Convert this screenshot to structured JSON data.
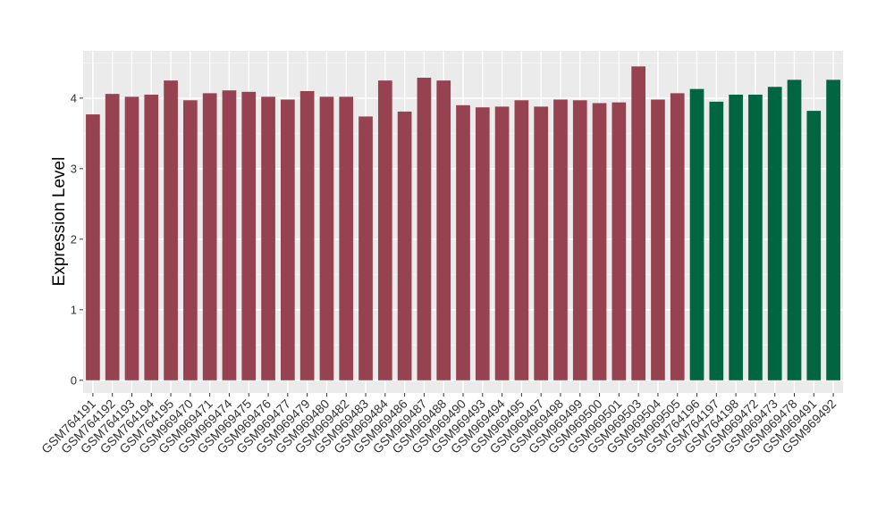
{
  "chart_data": {
    "type": "bar",
    "title": "",
    "xlabel": "",
    "ylabel": "Expression Level",
    "ylim": [
      -0.18,
      4.67
    ],
    "yticks": [
      0,
      1,
      2,
      3,
      4
    ],
    "grid": true,
    "panel_background": "#ebebeb",
    "series_colors": [
      "#974250",
      "#006641"
    ],
    "categories": [
      "GSM764191",
      "GSM764192",
      "GSM764193",
      "GSM764194",
      "GSM764195",
      "GSM969470",
      "GSM969471",
      "GSM969474",
      "GSM969475",
      "GSM969476",
      "GSM969477",
      "GSM969479",
      "GSM969480",
      "GSM969482",
      "GSM969483",
      "GSM969484",
      "GSM969486",
      "GSM969487",
      "GSM969488",
      "GSM969490",
      "GSM969493",
      "GSM969494",
      "GSM969495",
      "GSM969497",
      "GSM969498",
      "GSM969499",
      "GSM969500",
      "GSM969501",
      "GSM969503",
      "GSM969504",
      "GSM969505",
      "GSM764196",
      "GSM764197",
      "GSM764198",
      "GSM969472",
      "GSM969473",
      "GSM969478",
      "GSM969491",
      "GSM969492"
    ],
    "values": [
      3.77,
      4.06,
      4.02,
      4.05,
      4.25,
      3.97,
      4.07,
      4.11,
      4.09,
      4.02,
      3.98,
      4.1,
      4.02,
      4.02,
      3.74,
      4.25,
      3.81,
      4.29,
      4.25,
      3.9,
      3.87,
      3.88,
      3.97,
      3.88,
      3.98,
      3.97,
      3.93,
      3.94,
      4.45,
      3.98,
      4.07,
      4.13,
      3.95,
      4.05,
      4.05,
      4.16,
      4.26,
      3.82,
      4.26
    ],
    "groups": [
      0,
      0,
      0,
      0,
      0,
      0,
      0,
      0,
      0,
      0,
      0,
      0,
      0,
      0,
      0,
      0,
      0,
      0,
      0,
      0,
      0,
      0,
      0,
      0,
      0,
      0,
      0,
      0,
      0,
      0,
      0,
      1,
      1,
      1,
      1,
      1,
      1,
      1,
      1
    ]
  }
}
